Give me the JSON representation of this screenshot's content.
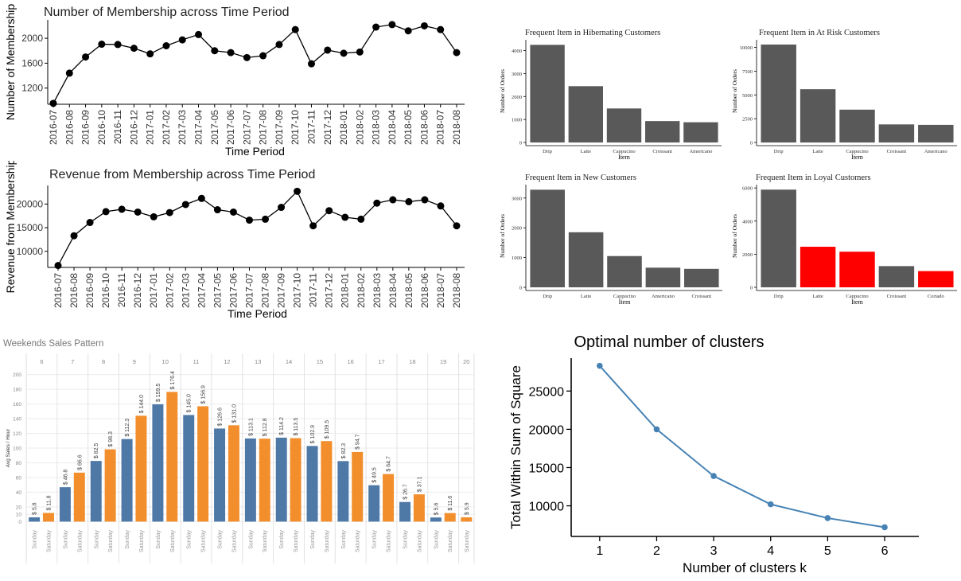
{
  "colors": {
    "dark_bar": "#595959",
    "highlight_bar": "#ff0000",
    "sunday_bar": "#4e79a7",
    "saturday_bar": "#f28e2b",
    "kmeans_line": "#4682b4"
  },
  "chart_data": [
    {
      "type": "line",
      "title": "Number of Membership across Time Period",
      "xlabel": "Time Period",
      "ylabel": "Number of Membership",
      "x": [
        "2016-07",
        "2016-08",
        "2016-09",
        "2016-10",
        "2016-11",
        "2016-12",
        "2017-01",
        "2017-02",
        "2017-03",
        "2017-04",
        "2017-05",
        "2017-06",
        "2017-07",
        "2017-08",
        "2017-09",
        "2017-10",
        "2017-11",
        "2017-12",
        "2018-01",
        "2018-02",
        "2018-03",
        "2018-04",
        "2018-05",
        "2018-06",
        "2018-07",
        "2018-08"
      ],
      "values": [
        955,
        1440,
        1700,
        1905,
        1900,
        1840,
        1750,
        1880,
        1975,
        2060,
        1800,
        1770,
        1690,
        1720,
        1900,
        2140,
        1590,
        1810,
        1760,
        1780,
        2180,
        2220,
        2120,
        2200,
        2140,
        1770
      ],
      "yticks": [
        1200,
        1600,
        2000
      ],
      "ylim": [
        940,
        2270
      ],
      "grid": false
    },
    {
      "type": "line",
      "title": "Revenue from Membership across Time Period",
      "xlabel": "Time Period",
      "ylabel": "Revenue from Membership",
      "x": [
        "2016-07",
        "2016-08",
        "2016-09",
        "2016-10",
        "2016-11",
        "2016-12",
        "2017-01",
        "2017-02",
        "2017-03",
        "2017-04",
        "2017-05",
        "2017-06",
        "2017-07",
        "2017-08",
        "2017-09",
        "2017-10",
        "2017-11",
        "2017-12",
        "2018-01",
        "2018-02",
        "2018-03",
        "2018-04",
        "2018-05",
        "2018-06",
        "2018-07",
        "2018-08"
      ],
      "values": [
        7000,
        13300,
        16100,
        18400,
        18900,
        18300,
        17300,
        18200,
        19900,
        21200,
        18800,
        18300,
        16600,
        16800,
        19300,
        22700,
        15400,
        18600,
        17200,
        16800,
        20200,
        20900,
        20500,
        20900,
        19600,
        15400
      ],
      "yticks": [
        10000,
        15000,
        20000
      ],
      "ylim": [
        6600,
        23600
      ],
      "grid": false
    },
    {
      "type": "bar",
      "title": "Frequent Item in Hibernating Customers",
      "xlabel": "Item",
      "ylabel": "Number of Orders",
      "categories": [
        "Drip",
        "Latte",
        "Cappucino",
        "Croissant",
        "Americano"
      ],
      "values": [
        4250,
        2450,
        1480,
        930,
        880
      ],
      "highlight": [
        false,
        false,
        false,
        false,
        false
      ],
      "yticks": [
        0,
        1000,
        2000,
        3000,
        4000
      ],
      "ylim": [
        0,
        4470
      ]
    },
    {
      "type": "bar",
      "title": "Frequent Item in At Risk Customers",
      "xlabel": "Item",
      "ylabel": "Number of Orders",
      "categories": [
        "Drip",
        "Latte",
        "Cappucino",
        "Croissant",
        "Americano"
      ],
      "values": [
        10300,
        5600,
        3450,
        1900,
        1850
      ],
      "highlight": [
        false,
        false,
        false,
        false,
        false
      ],
      "yticks": [
        0,
        2500,
        5000,
        7500,
        10000
      ],
      "ylim": [
        0,
        10800
      ]
    },
    {
      "type": "bar",
      "title": "Frequent Item in New Customers",
      "xlabel": "Item",
      "ylabel": "Number of Orders",
      "categories": [
        "Drip",
        "Latte",
        "Cappucino",
        "Americano",
        "Croissant"
      ],
      "values": [
        3280,
        1850,
        1050,
        660,
        620
      ],
      "highlight": [
        false,
        false,
        false,
        false,
        false
      ],
      "yticks": [
        0,
        1000,
        2000,
        3000
      ],
      "ylim": [
        0,
        3450
      ]
    },
    {
      "type": "bar",
      "title": "Frequent Item in Loyal Customers",
      "xlabel": "Item",
      "ylabel": "Number of Orders",
      "categories": [
        "Drip",
        "Latte",
        "Cappucino",
        "Croissant",
        "Cortado"
      ],
      "values": [
        5900,
        2450,
        2150,
        1280,
        980
      ],
      "highlight": [
        false,
        true,
        true,
        false,
        true
      ],
      "yticks": [
        0,
        2000,
        4000,
        6000
      ],
      "ylim": [
        0,
        6200
      ]
    },
    {
      "type": "bar",
      "title": "Weekends Sales Pattern",
      "ylabel": "Avg Sales / Hour",
      "groups": [
        "6",
        "7",
        "8",
        "9",
        "10",
        "11",
        "12",
        "13",
        "14",
        "15",
        "16",
        "17",
        "18",
        "19",
        "20"
      ],
      "series": [
        {
          "name": "Sunday",
          "values": [
            5.8,
            46.8,
            82.5,
            112.3,
            159.5,
            145.0,
            126.6,
            113.1,
            114.2,
            102.9,
            82.3,
            49.5,
            26.7,
            5.6,
            null
          ]
        },
        {
          "name": "Saturday",
          "values": [
            11.8,
            66.6,
            98.3,
            144.0,
            176.4,
            156.9,
            131.0,
            112.8,
            113.5,
            109.5,
            94.7,
            64.7,
            37.1,
            11.6,
            5.9
          ]
        }
      ],
      "data_labels": {
        "Sunday": [
          "$ 5.8",
          "$ 46.8",
          "$ 82.5",
          "$ 112.3",
          "$ 159.5",
          "$ 145.0",
          "$ 126.6",
          "$ 113.1",
          "$ 114.2",
          "$ 102.9",
          "$ 82.3",
          "$ 49.5",
          "$ 26.7",
          "$ 5.6",
          ""
        ],
        "Saturday": [
          "$ 11.8",
          "$ 66.6",
          "$ 98.3",
          "$ 144.0",
          "$ 176.4",
          "$ 156.9",
          "$ 131.0",
          "$ 112.8",
          "$ 113.5",
          "$ 109.5",
          "$ 94.7",
          "$ 64.7",
          "$ 37.1",
          "$ 11.6",
          "$ 5.9"
        ]
      },
      "yticks": [
        0,
        10,
        20,
        40,
        60,
        80,
        100,
        120,
        140,
        160,
        180,
        200
      ],
      "ylim": [
        -5,
        205
      ],
      "grid": true
    },
    {
      "type": "line",
      "title": "Optimal number of clusters",
      "xlabel": "Number of clusters k",
      "ylabel": "Total Within Sum of Square",
      "x": [
        1,
        2,
        3,
        4,
        5,
        6
      ],
      "values": [
        28300,
        20000,
        13900,
        10200,
        8400,
        7200
      ],
      "yticks": [
        10000,
        15000,
        20000,
        25000
      ],
      "xlim": [
        0.5,
        6.6
      ],
      "ylim": [
        6000,
        29300
      ],
      "grid": false
    }
  ]
}
